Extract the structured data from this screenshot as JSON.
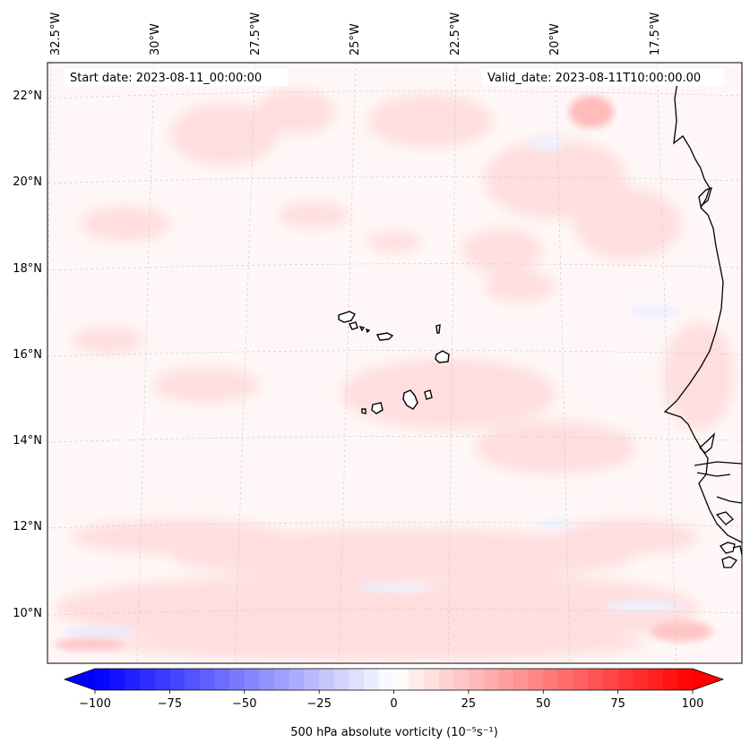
{
  "map": {
    "start_date": "Start date: 2023-08-11_00:00:00",
    "valid_date": "Valid_date: 2023-08-11T10:00:00.00",
    "lon_labels": [
      "32.5°W",
      "30°W",
      "27.5°W",
      "25°W",
      "22.5°W",
      "20°W",
      "17.5°W"
    ],
    "lat_labels": [
      "22°N",
      "20°N",
      "18°N",
      "16°N",
      "14°N",
      "12°N",
      "10°N"
    ],
    "features": [
      "Cape Verde islands",
      "West African coastline"
    ]
  },
  "colorbar": {
    "ticks": [
      "−100",
      "−75",
      "−50",
      "−25",
      "0",
      "25",
      "50",
      "75",
      "100"
    ],
    "tick_values": [
      -100,
      -75,
      -50,
      -25,
      0,
      25,
      50,
      75,
      100
    ],
    "min": -100,
    "max": 100,
    "levels": 40,
    "label": "500 hPa absolute vorticity (10⁻⁵s⁻¹)",
    "color_negative": "#0000ff",
    "color_zero": "#ffffff",
    "color_positive": "#ff0000"
  }
}
